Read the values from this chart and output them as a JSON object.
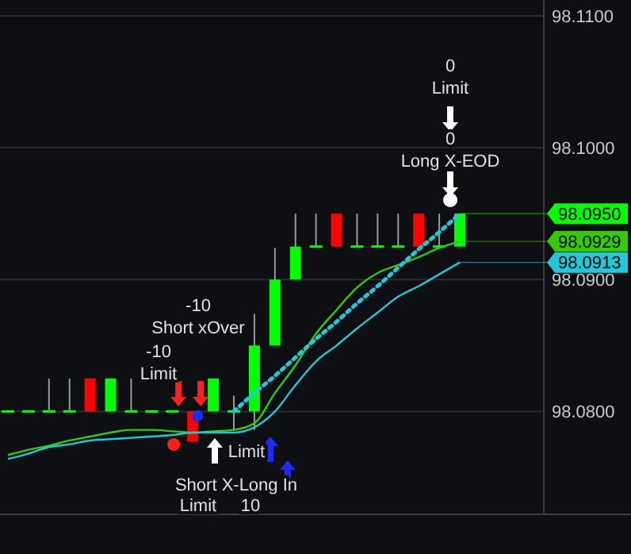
{
  "chart_data": {
    "type": "candlestick",
    "categories": [
      null,
      null,
      null,
      null,
      null,
      null,
      null,
      null,
      null,
      null,
      null,
      null,
      null,
      null,
      null,
      null,
      null,
      null,
      null,
      null,
      null,
      null,
      null
    ],
    "ohlc": [
      [
        98.08,
        98.08,
        98.08,
        98.08
      ],
      [
        98.08,
        98.08,
        98.08,
        98.08
      ],
      [
        98.08,
        98.0825,
        98.08,
        98.08
      ],
      [
        98.08,
        98.0825,
        98.08,
        98.08
      ],
      [
        98.0825,
        98.0825,
        98.08,
        98.08
      ],
      [
        98.08,
        98.0825,
        98.08,
        98.0825
      ],
      [
        98.08,
        98.0825,
        98.08,
        98.08
      ],
      [
        98.08,
        98.08,
        98.08,
        98.08
      ],
      [
        98.08,
        98.08,
        98.08,
        98.08
      ],
      [
        98.08,
        98.08,
        98.0777,
        98.0777
      ],
      [
        98.08,
        98.0825,
        98.08,
        98.0825
      ],
      [
        98.08,
        98.0812,
        98.0786,
        98.08
      ],
      [
        98.08,
        98.0874,
        98.0786,
        98.085
      ],
      [
        98.085,
        98.0924,
        98.085,
        98.09
      ],
      [
        98.09,
        98.095,
        98.09,
        98.0925
      ],
      [
        98.0925,
        98.095,
        98.0925,
        98.0925
      ],
      [
        98.095,
        98.095,
        98.0925,
        98.0925
      ],
      [
        98.0925,
        98.095,
        98.0925,
        98.0925
      ],
      [
        98.0925,
        98.095,
        98.0925,
        98.0925
      ],
      [
        98.0925,
        98.095,
        98.0925,
        98.0925
      ],
      [
        98.095,
        98.095,
        98.0925,
        98.0925
      ],
      [
        98.0925,
        98.095,
        98.0925,
        98.0925
      ],
      [
        98.0925,
        98.095,
        98.0925,
        98.095
      ]
    ],
    "colors": [
      "#00ff00",
      "#00ff00",
      "#00ff00",
      "#00ff00",
      "#ff0000",
      "#00ff00",
      "#00ff00",
      "#00ff00",
      "#00ff00",
      "#ff0000",
      "#00ff00",
      "#00ff00",
      "#00ff00",
      "#00ff00",
      "#00ff00",
      "#00ff00",
      "#ff0000",
      "#00ff00",
      "#00ff00",
      "#00ff00",
      "#ff0000",
      "#00ff00",
      "#00ff00"
    ],
    "value_labels": [
      null,
      null,
      null,
      null,
      null,
      null,
      null,
      null,
      null,
      null,
      null,
      null,
      null,
      null,
      null,
      null,
      null,
      null,
      null,
      null,
      null,
      null,
      "98.0950"
    ],
    "series": [
      {
        "type": "line",
        "color": "#33cc00",
        "values": [
          98.0767,
          98.0771,
          98.0774,
          98.0778,
          98.0781,
          98.0784,
          98.0786,
          98.0786,
          98.0785,
          98.0784,
          98.0785,
          98.0786,
          98.0791,
          98.0814,
          98.0835,
          98.0859,
          98.0877,
          98.0894,
          98.0905,
          98.0911,
          98.0917,
          98.0924,
          98.0929
        ],
        "value_labels": [
          null,
          null,
          null,
          null,
          null,
          null,
          null,
          null,
          null,
          null,
          null,
          null,
          null,
          null,
          null,
          null,
          null,
          null,
          null,
          null,
          null,
          null,
          "98.0929"
        ]
      },
      {
        "type": "line",
        "color": "#22c8d8",
        "values": [
          98.0764,
          98.0768,
          98.0773,
          98.0775,
          98.0778,
          98.0779,
          98.078,
          98.0781,
          98.0782,
          98.0784,
          98.0784,
          98.0784,
          98.0788,
          98.08,
          98.082,
          98.0838,
          98.085,
          98.0863,
          98.0875,
          98.0887,
          98.0895,
          98.0904,
          98.0913
        ],
        "value_labels": [
          null,
          null,
          null,
          null,
          null,
          null,
          null,
          null,
          null,
          null,
          null,
          null,
          null,
          null,
          null,
          null,
          null,
          null,
          null,
          null,
          null,
          null,
          "98.0913"
        ]
      },
      {
        "type": "line",
        "color": "#22c8d8",
        "line_style": "dotted",
        "values": [
          null,
          null,
          null,
          null,
          null,
          null,
          null,
          null,
          null,
          null,
          null,
          98.08,
          98.0814,
          98.0827,
          98.0841,
          98.0855,
          98.0868,
          98.0882,
          98.0895,
          98.0909,
          98.0923,
          98.0936,
          98.095
        ]
      }
    ],
    "ylim": [
      98.0722,
      98.1112
    ],
    "yticks": [
      {
        "value": 98.08,
        "label": "98.0800"
      },
      {
        "value": 98.09,
        "label": "98.0900"
      },
      {
        "value": 98.1,
        "label": "98.1000"
      },
      {
        "value": 98.11,
        "label": "98.1100"
      }
    ],
    "tick_labels": "y",
    "grid": "y",
    "annotations": [
      "0",
      "Limit",
      "0",
      "Long X-EOD",
      "-10",
      "Short xOver",
      "-10",
      "Limit",
      "Limit",
      "Short X-Long In",
      "Limit",
      "10"
    ]
  }
}
